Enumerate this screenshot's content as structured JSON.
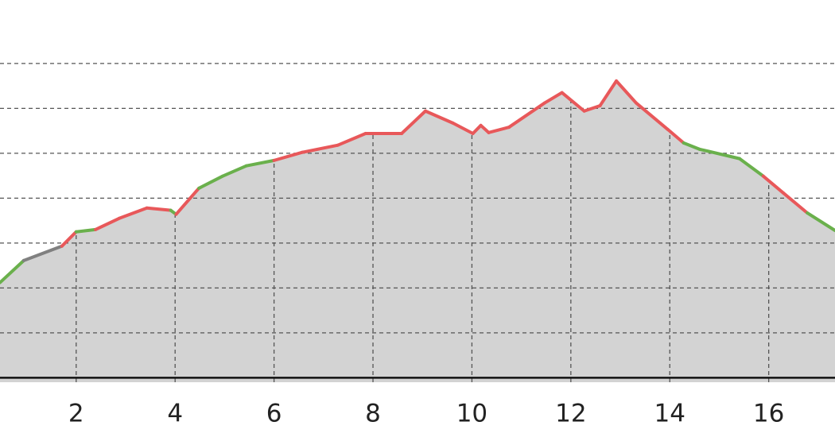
{
  "chart_data": {
    "type": "area",
    "x": [
      0.46,
      0.94,
      1.71,
      2.0,
      2.39,
      2.87,
      3.43,
      3.91,
      4.02,
      4.48,
      4.96,
      5.44,
      6.0,
      6.57,
      7.29,
      7.85,
      8.58,
      9.06,
      9.62,
      10.02,
      10.18,
      10.34,
      10.75,
      11.47,
      11.82,
      12.27,
      12.59,
      12.92,
      13.32,
      13.96,
      14.28,
      14.6,
      15.41,
      15.89,
      16.29,
      16.78,
      17.34
    ],
    "values": [
      2.12,
      2.61,
      2.93,
      3.25,
      3.3,
      3.55,
      3.78,
      3.73,
      3.64,
      4.22,
      4.49,
      4.72,
      4.84,
      5.02,
      5.18,
      5.44,
      5.44,
      5.94,
      5.67,
      5.44,
      5.62,
      5.46,
      5.58,
      6.12,
      6.35,
      5.94,
      6.06,
      6.61,
      6.12,
      5.53,
      5.23,
      5.09,
      4.88,
      4.49,
      4.12,
      3.67,
      3.28
    ],
    "segment_colors": [
      "#6ab04c",
      "#808080",
      "#e8585a",
      "#6ab04c",
      "#e8585a",
      "#e8585a",
      "#e8585a",
      "#6ab04c",
      "#e8585a",
      "#6ab04c",
      "#6ab04c",
      "#6ab04c",
      "#e8585a",
      "#e8585a",
      "#e8585a",
      "#e8585a",
      "#e8585a",
      "#e8585a",
      "#e8585a",
      "#e8585a",
      "#e8585a",
      "#e8585a",
      "#e8585a",
      "#e8585a",
      "#e8585a",
      "#e8585a",
      "#e8585a",
      "#e8585a",
      "#e8585a",
      "#e8585a",
      "#6ab04c",
      "#6ab04c",
      "#6ab04c",
      "#e8585a",
      "#e8585a",
      "#6ab04c"
    ],
    "fill_color": "#d3d3d3",
    "xlim": [
      0.46,
      17.34
    ],
    "xticks": [
      2,
      4,
      6,
      8,
      10,
      12,
      14,
      16
    ],
    "ylim": [
      -0.1,
      8.4
    ],
    "yticks": [
      1,
      2,
      3,
      4,
      5,
      6,
      7
    ],
    "grid": true
  }
}
